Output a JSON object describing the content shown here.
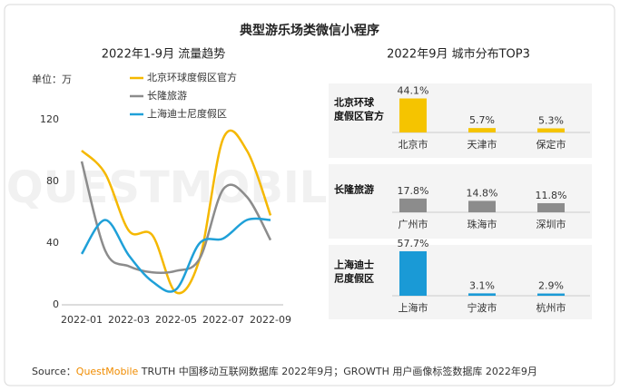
{
  "title": "典型游乐场类微信小程序",
  "watermark": "QUESTMOBILE",
  "source": {
    "label": "Source：",
    "brand": "QuestMobile",
    "text": " TRUTH 中国移动互联网数据库 2022年9月；GROWTH 用户画像标签数据库 2022年9月"
  },
  "chart_data": [
    {
      "type": "line",
      "title": "2022年1-9月 流量趋势",
      "unit": "单位：万",
      "categories": [
        "2022-01",
        null,
        "2022-03",
        null,
        "2022-05",
        null,
        "2022-07",
        null,
        "2022-09"
      ],
      "ylim": [
        0,
        130
      ],
      "yticks": [
        0,
        40,
        80,
        120
      ],
      "series": [
        {
          "name": "北京环球度假区官方",
          "color": "#f5b800",
          "values": [
            100,
            85,
            48,
            45,
            8,
            30,
            108,
            100,
            58
          ]
        },
        {
          "name": "长隆旅游",
          "color": "#8c8c8c",
          "values": [
            93,
            35,
            25,
            21,
            22,
            30,
            75,
            70,
            42
          ]
        },
        {
          "name": "上海迪士尼度假区",
          "color": "#1fa0d8",
          "values": [
            33,
            55,
            32,
            15,
            10,
            40,
            43,
            55,
            55
          ]
        }
      ]
    },
    {
      "type": "bar",
      "title": "2022年9月 城市分布TOP3",
      "groups": [
        {
          "label_lines": [
            "北京环球",
            "度假区官方"
          ],
          "color": "#f5c400",
          "categories": [
            "北京市",
            "天津市",
            "保定市"
          ],
          "values": [
            44.1,
            5.7,
            5.3
          ],
          "value_labels": [
            "44.1%",
            "5.7%",
            "5.3%"
          ]
        },
        {
          "label_lines": [
            "长隆旅游"
          ],
          "color": "#8c8c8c",
          "categories": [
            "广州市",
            "珠海市",
            "深圳市"
          ],
          "values": [
            17.8,
            14.8,
            11.8
          ],
          "value_labels": [
            "17.8%",
            "14.8%",
            "11.8%"
          ]
        },
        {
          "label_lines": [
            "上海迪士",
            "尼度假区"
          ],
          "color": "#1a9ad6",
          "categories": [
            "上海市",
            "宁波市",
            "杭州市"
          ],
          "values": [
            57.7,
            3.1,
            2.9
          ],
          "value_labels": [
            "57.7%",
            "3.1%",
            "2.9%"
          ]
        }
      ]
    }
  ]
}
